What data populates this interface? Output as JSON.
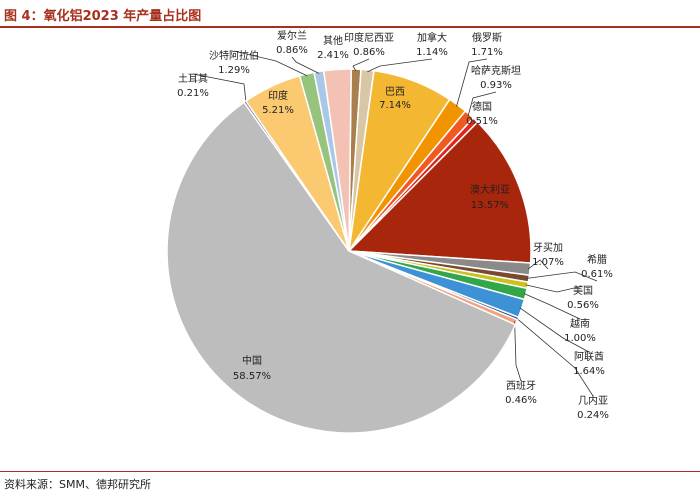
{
  "title": "图 4：氧化铝2023 年产量占比图",
  "source": "资料来源：SMM、德邦研究所",
  "chart_data": {
    "type": "pie",
    "title": "图 4：氧化铝2023 年产量占比图",
    "slices": [
      {
        "name": "印度尼西亚",
        "value": 0.86,
        "label": "0.86%",
        "color": "#a97f4e"
      },
      {
        "name": "加拿大",
        "value": 1.14,
        "label": "1.14%",
        "color": "#d9c6a5"
      },
      {
        "name": "巴西",
        "value": 7.14,
        "label": "7.14%",
        "color": "#f4b731"
      },
      {
        "name": "俄罗斯",
        "value": 1.71,
        "label": "1.71%",
        "color": "#f29400"
      },
      {
        "name": "哈萨克斯坦",
        "value": 0.93,
        "label": "0.93%",
        "color": "#f05a22"
      },
      {
        "name": "德国",
        "value": 0.51,
        "label": "0.51%",
        "color": "#e1261c"
      },
      {
        "name": "澳大利亚",
        "value": 13.57,
        "label": "13.57%",
        "color": "#a8260b"
      },
      {
        "name": "牙买加",
        "value": 1.07,
        "label": "1.07%",
        "color": "#8a8a8a"
      },
      {
        "name": "希腊",
        "value": 0.61,
        "label": "0.61%",
        "color": "#7a4a2e"
      },
      {
        "name": "美国",
        "value": 0.56,
        "label": "0.56%",
        "color": "#c8c21e"
      },
      {
        "name": "越南",
        "value": 1.0,
        "label": "1.00%",
        "color": "#33a64a"
      },
      {
        "name": "阿联酋",
        "value": 1.64,
        "label": "1.64%",
        "color": "#3d92d6"
      },
      {
        "name": "几内亚",
        "value": 0.24,
        "label": "0.24%",
        "color": "#2a4d8f"
      },
      {
        "name": "西班牙",
        "value": 0.46,
        "label": "0.46%",
        "color": "#f2a27d"
      },
      {
        "name": "中国",
        "value": 58.57,
        "label": "58.57%",
        "color": "#bdbdbd"
      },
      {
        "name": "土耳其",
        "value": 0.21,
        "label": "0.21%",
        "color": "#7a5ba8"
      },
      {
        "name": "印度",
        "value": 5.21,
        "label": "5.21%",
        "color": "#fbc96f"
      },
      {
        "name": "沙特阿拉伯",
        "value": 1.29,
        "label": "1.29%",
        "color": "#96c47c"
      },
      {
        "name": "爱尔兰",
        "value": 0.86,
        "label": "0.86%",
        "color": "#a9c8e8"
      },
      {
        "name": "其他",
        "value": 2.41,
        "label": "2.41%",
        "color": "#f4c2b4"
      }
    ]
  }
}
